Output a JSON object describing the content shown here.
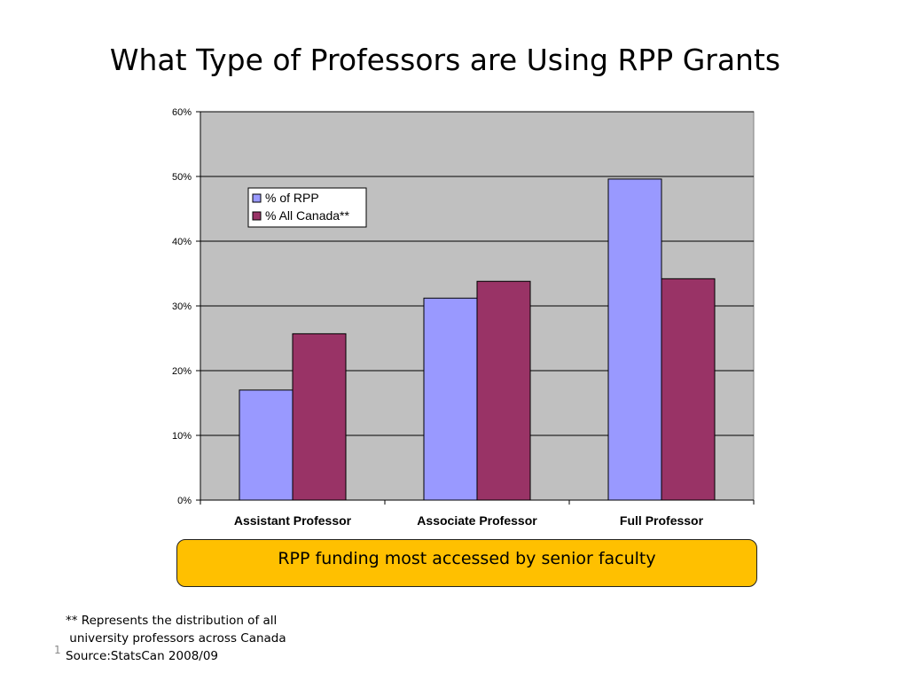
{
  "slide": {
    "title": "What Type of Professors are Using RPP Grants",
    "callout": "RPP funding most accessed by senior faculty",
    "footnote_lines": [
      "** Represents the distribution of all",
      " university professors across Canada",
      "Source:StatsCan 2008/09"
    ],
    "slide_number": "1"
  },
  "chart_data": {
    "type": "bar",
    "title": "",
    "xlabel": "",
    "ylabel": "",
    "categories": [
      "Assistant Professor",
      "Associate Professor",
      "Full Professor"
    ],
    "series": [
      {
        "name": "% of RPP",
        "values": [
          17,
          31.2,
          49.6
        ],
        "color": "#9999ff"
      },
      {
        "name": "% All Canada**",
        "values": [
          25.7,
          33.8,
          34.2
        ],
        "color": "#993366"
      }
    ],
    "ylim": [
      0,
      60
    ],
    "yticks": [
      0,
      10,
      20,
      30,
      40,
      50,
      60
    ],
    "ytick_labels": [
      "0%",
      "10%",
      "20%",
      "30%",
      "40%",
      "50%",
      "60%"
    ],
    "grid": true,
    "plot_background": "#c0c0c0",
    "legend_position": "top-left inside plot"
  }
}
